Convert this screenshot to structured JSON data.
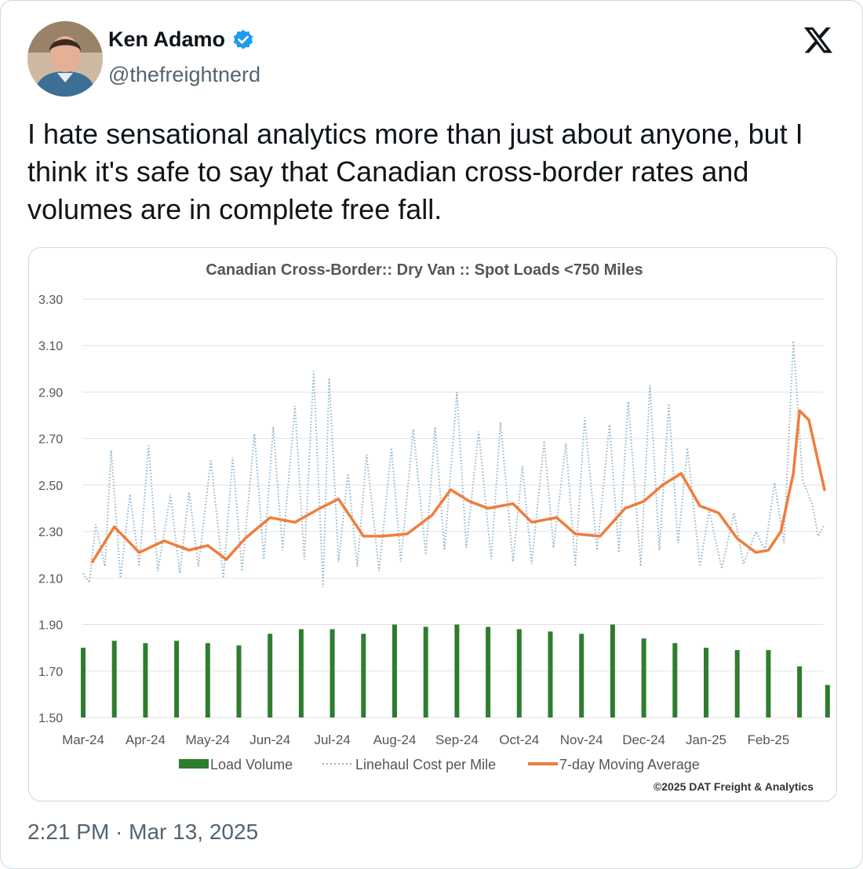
{
  "author": {
    "name": "Ken Adamo",
    "handle": "@thefreightnerd",
    "verified": true,
    "avatar_icon": "person-avatar-icon"
  },
  "tweet": {
    "text": "I hate sensational analytics more than just about anyone, but I think it's safe to say that Canadian cross-border rates and volumes are in complete free fall.",
    "timestamp": "2:21 PM · Mar 13, 2025"
  },
  "colors": {
    "volume_bar": "#2e7d2e",
    "linehaul_dots": "#8fb4cc",
    "moving_average": "#f07d3c",
    "text_dark": "#0f1419",
    "text_muted": "#536471",
    "verified_blue": "#1d9bf0"
  },
  "chart_data": {
    "type": "combo",
    "title": "Canadian Cross-Border:: Dry Van :: Spot Loads <750 Miles",
    "ylim": [
      1.5,
      3.3
    ],
    "y_ticks": [
      "3.30",
      "3.10",
      "2.90",
      "2.70",
      "2.50",
      "2.30",
      "2.10",
      "1.90",
      "1.70",
      "1.50"
    ],
    "x_tick_labels": [
      "Mar-24",
      "Apr-24",
      "May-24",
      "Jun-24",
      "Jul-24",
      "Aug-24",
      "Sep-24",
      "Oct-24",
      "Nov-24",
      "Dec-24",
      "Jan-25",
      "Feb-25"
    ],
    "legend": {
      "load_volume": "Load Volume",
      "linehaul": "Linehaul Cost per Mile",
      "moving_average": "7-day Moving Average",
      "placement": "bottom"
    },
    "copyright": "©2025 DAT Freight & Analytics",
    "series": [
      {
        "name": "7-day Moving Average",
        "style": "line",
        "month_index": [
          0.15,
          0.5,
          0.9,
          1.3,
          1.7,
          2.0,
          2.3,
          2.6,
          3.0,
          3.4,
          3.8,
          4.1,
          4.5,
          4.8,
          5.2,
          5.6,
          5.9,
          6.2,
          6.5,
          6.9,
          7.2,
          7.6,
          7.9,
          8.3,
          8.7,
          9.0,
          9.3,
          9.6,
          9.9,
          10.2,
          10.5,
          10.8,
          11.0,
          11.2,
          11.4,
          11.5,
          11.65,
          11.8,
          11.9
        ],
        "values": [
          2.17,
          2.32,
          2.21,
          2.26,
          2.22,
          2.24,
          2.18,
          2.27,
          2.36,
          2.34,
          2.4,
          2.44,
          2.28,
          2.28,
          2.29,
          2.37,
          2.48,
          2.43,
          2.4,
          2.42,
          2.34,
          2.36,
          2.29,
          2.28,
          2.4,
          2.43,
          2.5,
          2.55,
          2.41,
          2.38,
          2.27,
          2.21,
          2.22,
          2.3,
          2.55,
          2.82,
          2.78,
          2.6,
          2.48
        ]
      },
      {
        "name": "Linehaul Cost per Mile",
        "style": "dotted",
        "month_index": [
          0.0,
          0.1,
          0.2,
          0.35,
          0.45,
          0.6,
          0.75,
          0.9,
          1.05,
          1.2,
          1.4,
          1.55,
          1.7,
          1.85,
          2.05,
          2.25,
          2.4,
          2.55,
          2.75,
          2.9,
          3.05,
          3.2,
          3.4,
          3.55,
          3.7,
          3.85,
          3.95,
          4.1,
          4.25,
          4.4,
          4.55,
          4.75,
          4.95,
          5.1,
          5.3,
          5.5,
          5.65,
          5.8,
          6.0,
          6.15,
          6.35,
          6.55,
          6.7,
          6.9,
          7.05,
          7.2,
          7.4,
          7.55,
          7.75,
          7.9,
          8.05,
          8.25,
          8.45,
          8.6,
          8.75,
          8.95,
          9.1,
          9.25,
          9.4,
          9.55,
          9.7,
          9.9,
          10.05,
          10.25,
          10.45,
          10.6,
          10.8,
          10.95,
          11.1,
          11.25,
          11.4,
          11.55,
          11.7,
          11.8,
          11.9
        ],
        "values": [
          2.12,
          2.08,
          2.33,
          2.15,
          2.65,
          2.1,
          2.46,
          2.15,
          2.67,
          2.13,
          2.46,
          2.12,
          2.47,
          2.15,
          2.61,
          2.1,
          2.62,
          2.13,
          2.72,
          2.18,
          2.75,
          2.22,
          2.84,
          2.18,
          2.99,
          2.06,
          2.96,
          2.17,
          2.55,
          2.15,
          2.63,
          2.13,
          2.66,
          2.17,
          2.74,
          2.2,
          2.75,
          2.22,
          2.9,
          2.23,
          2.73,
          2.18,
          2.77,
          2.17,
          2.58,
          2.16,
          2.69,
          2.23,
          2.68,
          2.15,
          2.79,
          2.22,
          2.76,
          2.21,
          2.86,
          2.15,
          2.93,
          2.22,
          2.85,
          2.25,
          2.66,
          2.15,
          2.39,
          2.14,
          2.38,
          2.16,
          2.3,
          2.22,
          2.51,
          2.25,
          3.12,
          2.52,
          2.42,
          2.28,
          2.33
        ]
      },
      {
        "name": "Load Volume",
        "style": "bar",
        "month_index": [
          0.0,
          0.5,
          1.0,
          1.5,
          2.0,
          2.5,
          3.0,
          3.5,
          4.0,
          4.5,
          5.0,
          5.5,
          6.0,
          6.5,
          7.0,
          7.5,
          8.0,
          8.5,
          9.0,
          9.5,
          10.0,
          10.5,
          11.0,
          11.5,
          11.95
        ],
        "values": [
          1.8,
          1.83,
          1.82,
          1.83,
          1.82,
          1.81,
          1.86,
          1.88,
          1.88,
          1.86,
          1.9,
          1.89,
          1.9,
          1.89,
          1.88,
          1.87,
          1.86,
          1.9,
          1.84,
          1.82,
          1.8,
          1.79,
          1.79,
          1.72,
          1.64
        ]
      }
    ]
  }
}
